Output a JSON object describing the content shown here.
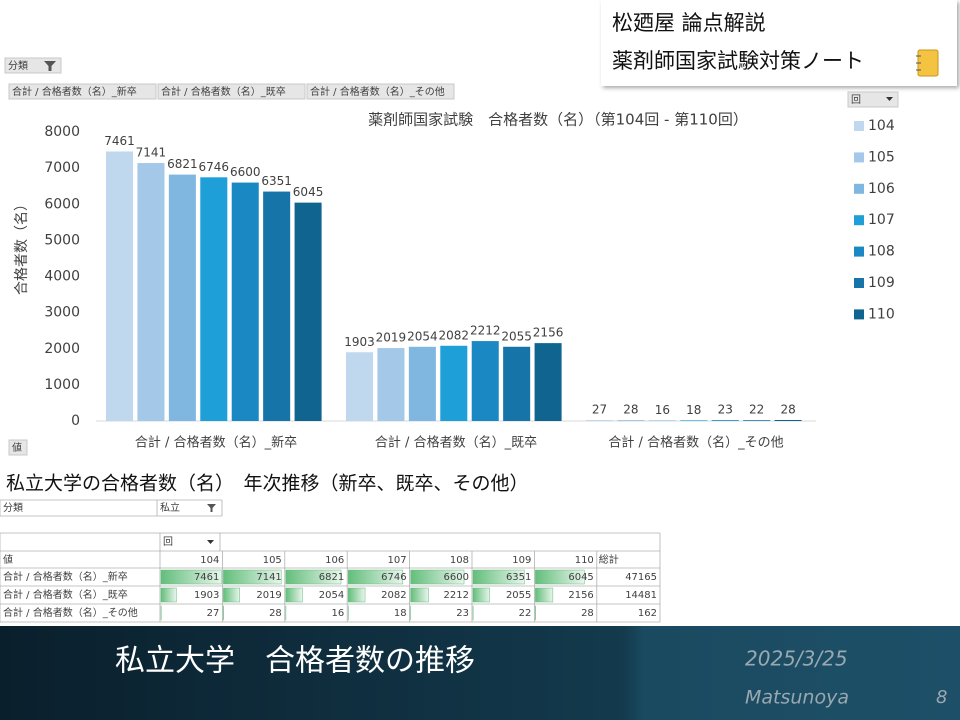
{
  "header": {
    "line1": "松廼屋 論点解説",
    "line2": "薬剤師国家試験対策ノート"
  },
  "field_buttons": {
    "filter": "分類",
    "values": "値",
    "legend": "回"
  },
  "chart_data": {
    "type": "bar",
    "title": "薬剤師国家試験　合格者数（名）（第104回 - 第110回）",
    "y_label": "合格者数（名）",
    "categories": [
      "合計 / 合格者数（名）_新卒",
      "合計 / 合格者数（名）_既卒",
      "合計 / 合格者数（名）_その他"
    ],
    "series": [
      {
        "name": "104",
        "color": "#c0d8ee",
        "values": [
          7461,
          1903,
          27
        ]
      },
      {
        "name": "105",
        "color": "#a3c8e8",
        "values": [
          7141,
          2019,
          28
        ]
      },
      {
        "name": "106",
        "color": "#80b7e0",
        "values": [
          6821,
          2054,
          16
        ]
      },
      {
        "name": "107",
        "color": "#1f9fd7",
        "values": [
          6746,
          2082,
          18
        ]
      },
      {
        "name": "108",
        "color": "#1a88c3",
        "values": [
          6600,
          2212,
          23
        ]
      },
      {
        "name": "109",
        "color": "#1674a8",
        "values": [
          6351,
          2055,
          22
        ]
      },
      {
        "name": "110",
        "color": "#0f6590",
        "values": [
          6045,
          2156,
          28
        ]
      }
    ],
    "ylim": [
      0,
      8000
    ],
    "yticks": [
      0,
      1000,
      2000,
      3000,
      4000,
      5000,
      6000,
      7000,
      8000
    ],
    "grid": false,
    "legend": "right"
  },
  "table": {
    "title": "私立大学の合格者数（名）　年次推移（新卒、既卒、その他）",
    "filter_label": "分類",
    "filter_value": "私立",
    "column_field": "回",
    "values_label": "値",
    "total_label": "総計",
    "totals": [
      47165,
      14481,
      162
    ]
  },
  "footer": {
    "title": "私立大学　合格者数の推移",
    "date": "2025/3/25",
    "author": "Matsunoya",
    "page": "8"
  }
}
